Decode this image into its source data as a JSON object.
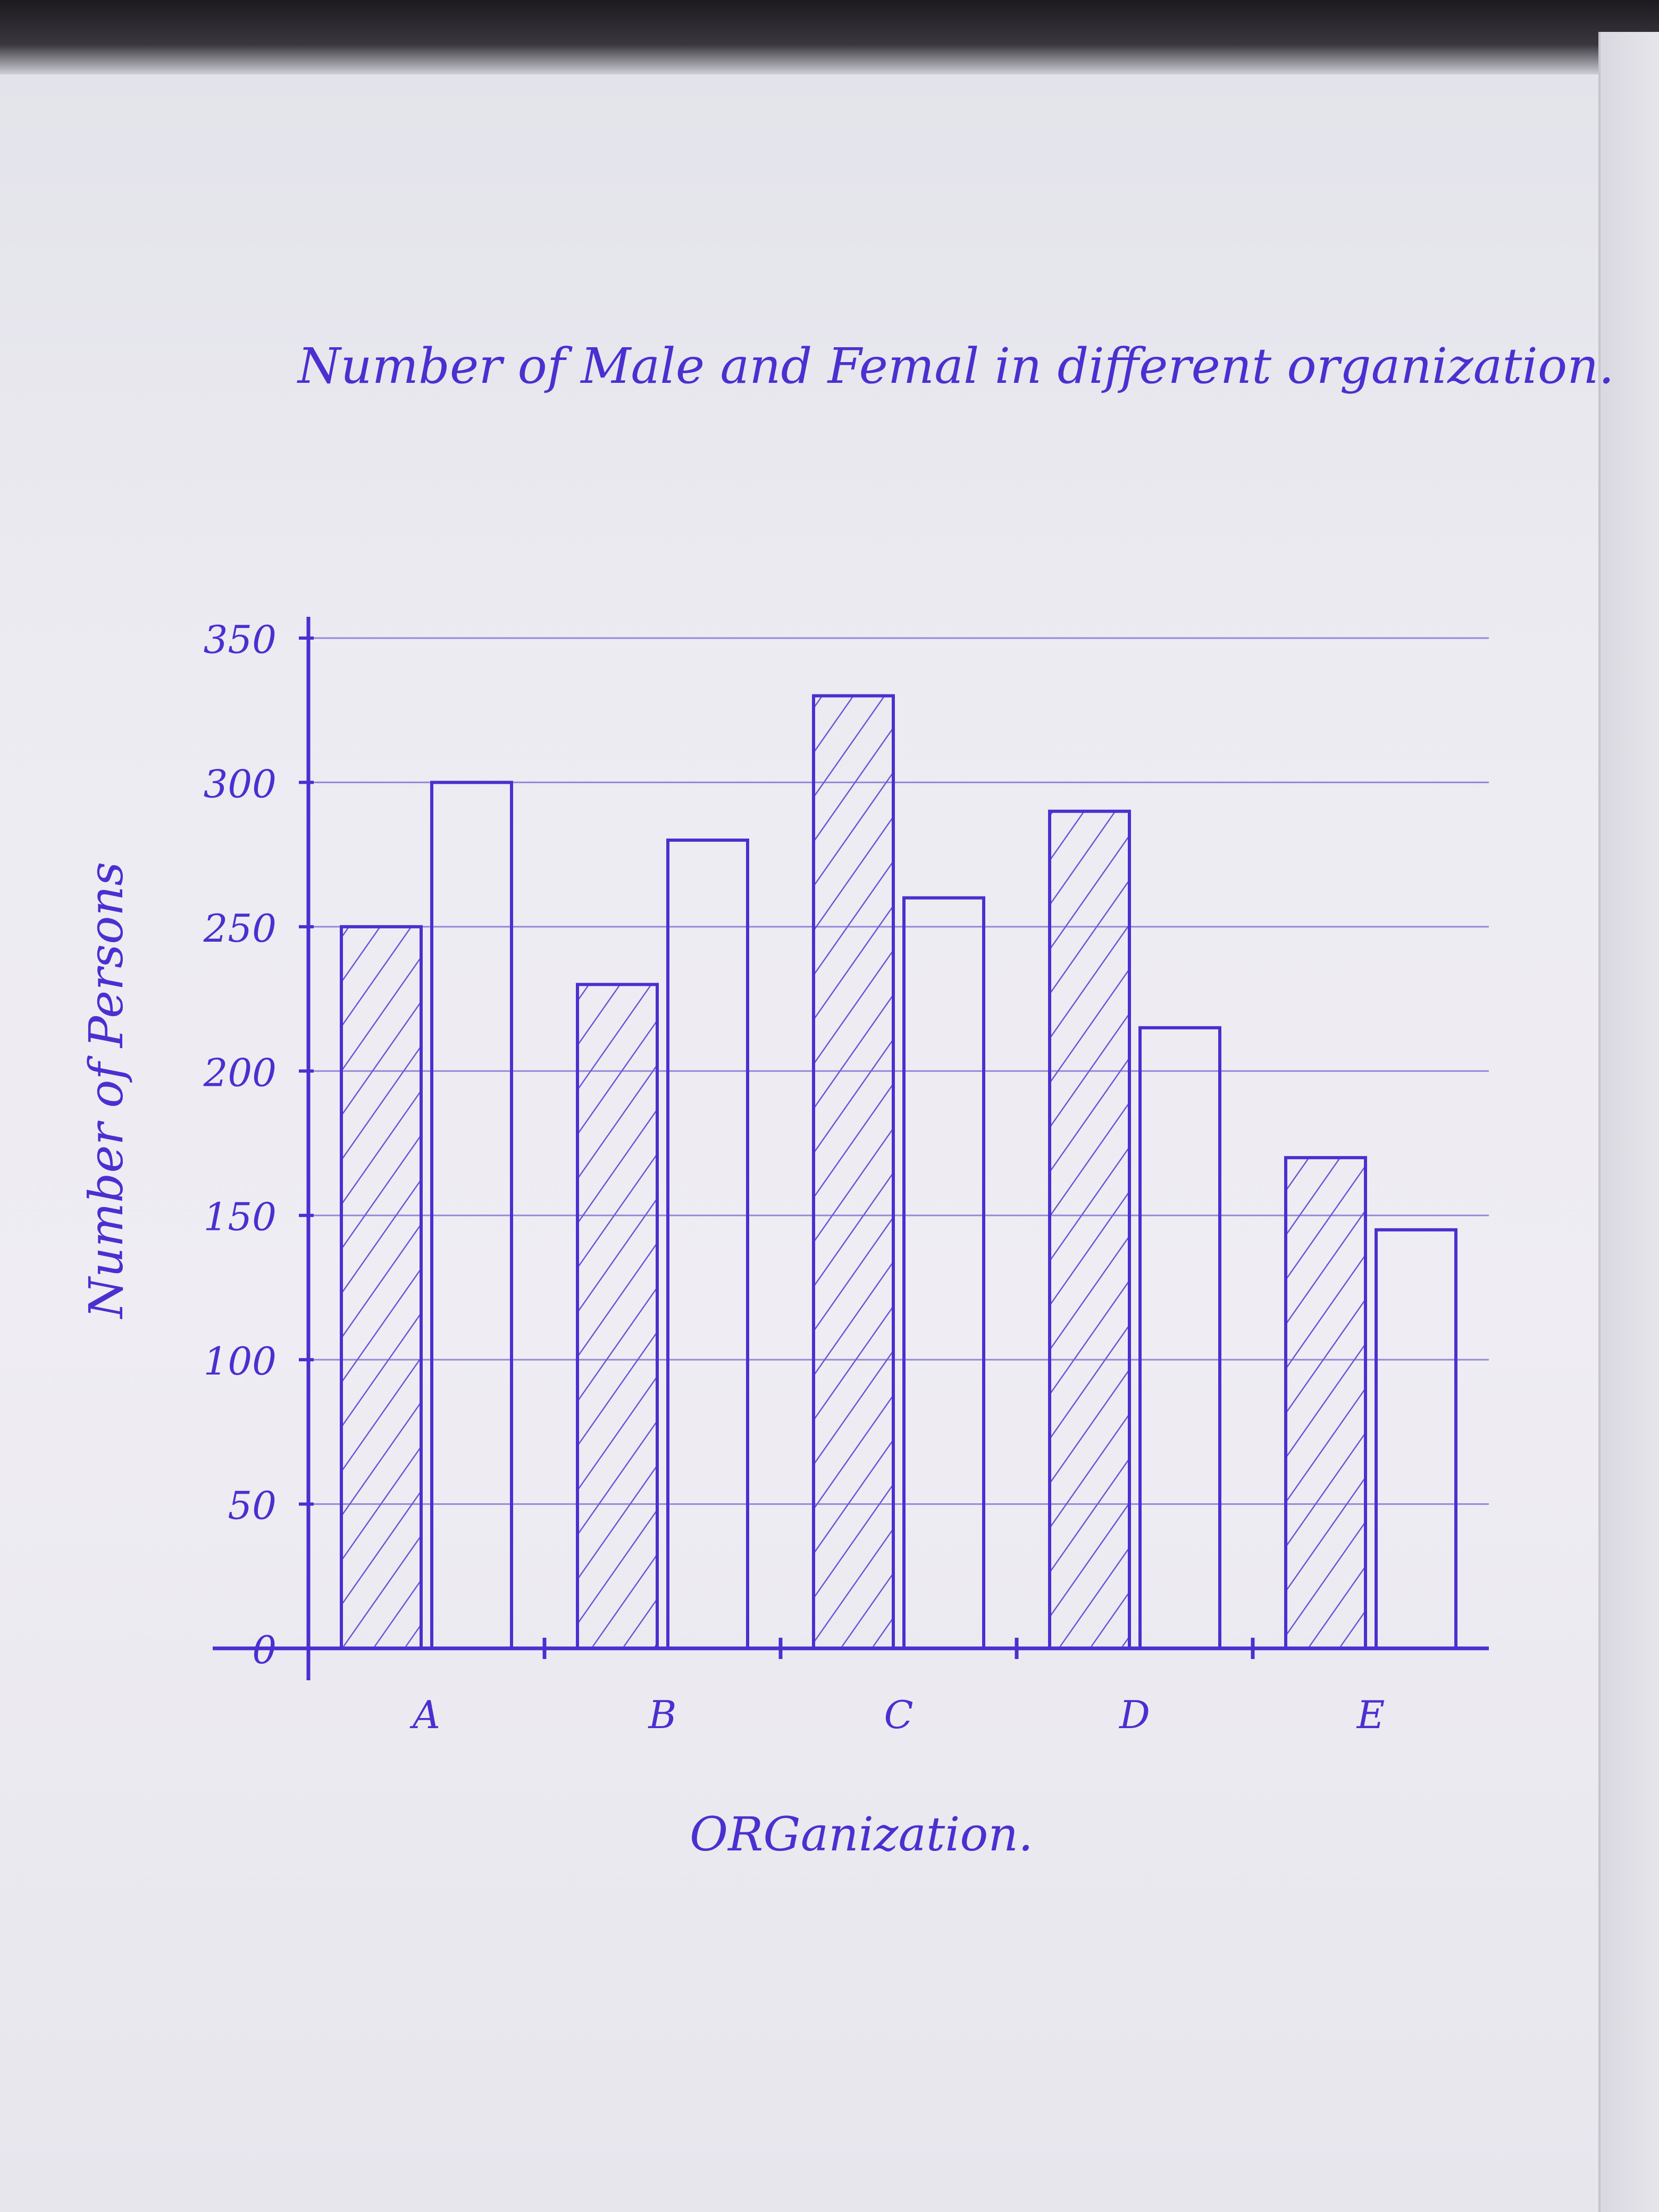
{
  "chart_data": {
    "type": "bar",
    "title": "Number of Male and Femal in different organization.",
    "xlabel": "ORGanization.",
    "ylabel": "Number of Persons",
    "categories": [
      "A",
      "B",
      "C",
      "D",
      "E"
    ],
    "series": [
      {
        "values": [
          250,
          230,
          330,
          290,
          170
        ]
      },
      {
        "values": [
          300,
          280,
          260,
          215,
          145
        ]
      }
    ],
    "ylim": [
      0,
      350
    ],
    "yticks": [
      0,
      50,
      100,
      150,
      200,
      250,
      300,
      350
    ],
    "grid": true,
    "legend": "none",
    "colors": {
      "ink": "#4c2fd0",
      "hatch": "#6a55d8"
    }
  }
}
